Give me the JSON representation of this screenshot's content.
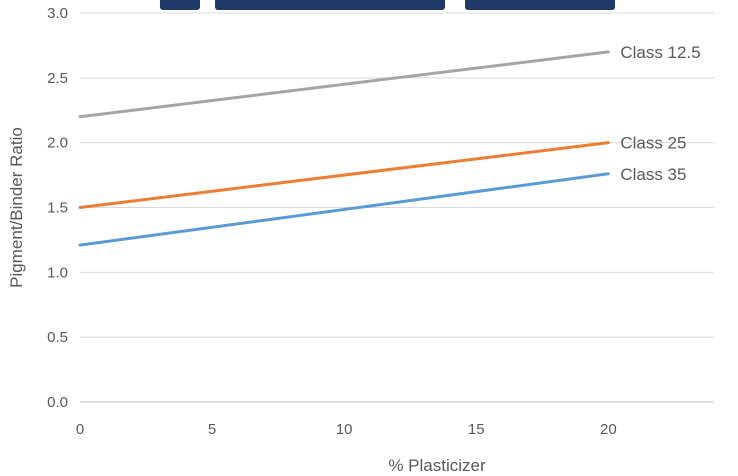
{
  "chart_data": {
    "type": "line",
    "title": "",
    "xlabel": "% Plasticizer",
    "ylabel": "Pigment/Binder Ratio",
    "xlim": [
      0,
      24
    ],
    "ylim": [
      0,
      3.0
    ],
    "x_ticks": [
      "0",
      "5",
      "10",
      "15",
      "20"
    ],
    "y_ticks": [
      "0.0",
      "0.5",
      "1.0",
      "1.5",
      "2.0",
      "2.5",
      "3.0"
    ],
    "grid": "horizontal",
    "series": [
      {
        "name": "Class 12.5",
        "color": "#a5a5a5",
        "x": [
          0,
          20
        ],
        "y": [
          2.2,
          2.7
        ]
      },
      {
        "name": "Class 25",
        "color": "#ed7d31",
        "x": [
          0,
          20
        ],
        "y": [
          1.5,
          2.0
        ]
      },
      {
        "name": "Class 35",
        "color": "#5b9bd5",
        "x": [
          0,
          20
        ],
        "y": [
          1.21,
          1.76
        ]
      }
    ]
  }
}
